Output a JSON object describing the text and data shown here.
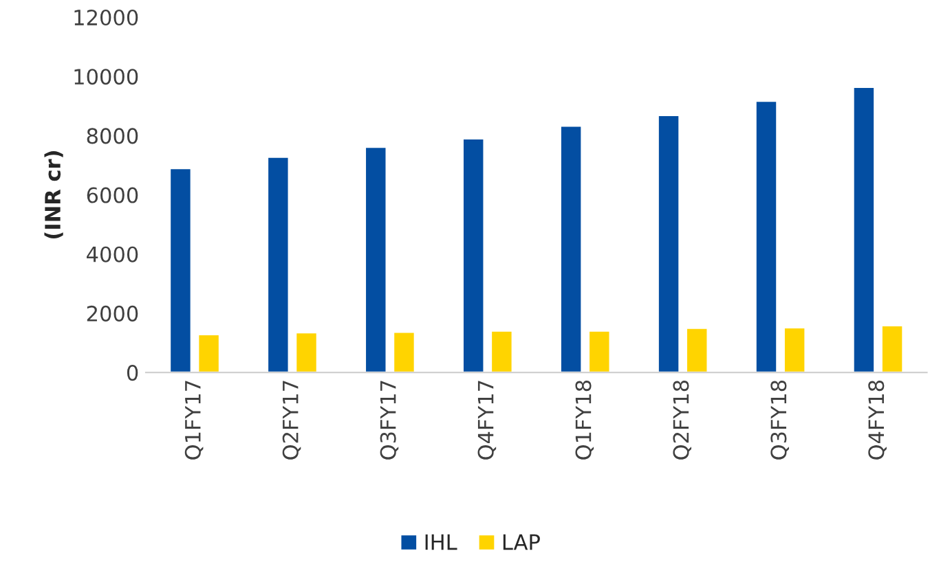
{
  "chart_data": {
    "type": "bar",
    "ylabel": "(INR cr)",
    "categories": [
      "Q1FY17",
      "Q2FY17",
      "Q3FY17",
      "Q4FY17",
      "Q1FY18",
      "Q2FY18",
      "Q3FY18",
      "Q4FY18"
    ],
    "series": [
      {
        "name": "IHL",
        "color": "#034ea2",
        "values": [
          6900,
          7280,
          7620,
          7900,
          8330,
          8690,
          9170,
          9640
        ]
      },
      {
        "name": "LAP",
        "color": "#ffd400",
        "values": [
          1290,
          1350,
          1370,
          1410,
          1410,
          1500,
          1520,
          1590
        ]
      }
    ],
    "ylim": [
      0,
      12000
    ],
    "yticks": [
      0,
      2000,
      4000,
      6000,
      8000,
      10000,
      12000
    ],
    "grid": false,
    "legend": "bottom"
  }
}
